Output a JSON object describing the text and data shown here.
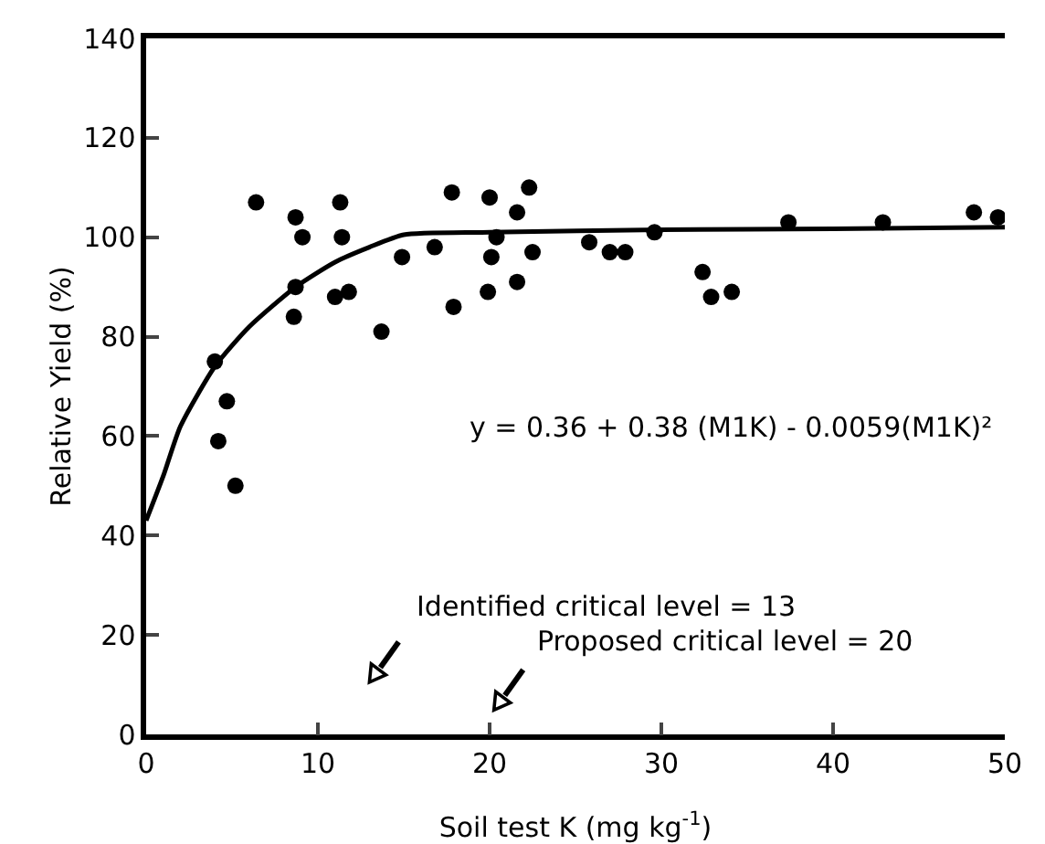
{
  "chart_data": {
    "type": "scatter",
    "xlabel": "Soil test K (mg kg$^{-1}$)",
    "ylabel": "Relative Yield (%)",
    "xlim": [
      0,
      50
    ],
    "xticks": [
      0,
      10,
      20,
      30,
      40,
      50
    ],
    "ylim": [
      0,
      140
    ],
    "yticks": [
      0,
      20,
      40,
      60,
      80,
      100,
      120,
      140
    ],
    "marker": "circle",
    "series": [
      {
        "color": "#000000",
        "x": [
          4,
          4.7,
          4.2,
          5.2,
          6.4,
          8.7,
          9.1,
          8.7,
          8.6,
          11.3,
          11.4,
          11,
          11.8,
          13.7,
          14.9,
          16.8,
          17.8,
          17.9,
          20,
          20.4,
          20.1,
          19.9,
          21.6,
          22.3,
          22.5,
          21.6,
          25.8,
          27,
          27.9,
          29.6,
          32.4,
          32.9,
          34.1,
          37.4,
          42.9,
          48.2,
          49.6
        ],
        "values": [
          75,
          67,
          59,
          50,
          107,
          104,
          100,
          90,
          84,
          107,
          100,
          88,
          89,
          81,
          96,
          98,
          109,
          86,
          108,
          100,
          96,
          89,
          105,
          110,
          97,
          91,
          99,
          97,
          97,
          101,
          93,
          88,
          89,
          103,
          103,
          105,
          104
        ]
      },
      {
        "type": "line",
        "color": "#000000",
        "marker": "none",
        "line_style": "solid",
        "x": [
          0,
          1,
          2,
          4,
          6,
          8.7,
          11,
          13,
          15,
          20,
          30,
          40,
          50
        ],
        "values": [
          43,
          52,
          62,
          74,
          82,
          90,
          95,
          98,
          100.5,
          101,
          101.5,
          101.7,
          102
        ]
      }
    ],
    "annotations": [
      "y = 0.36 + 0.38 (M1K) - 0.0059(M1K)²",
      "Identified critical level = 13",
      "Proposed critical level = 20"
    ]
  }
}
